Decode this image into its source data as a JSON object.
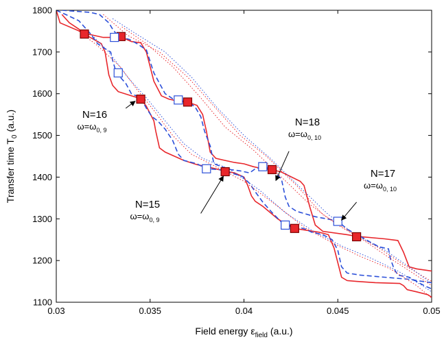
{
  "chart_data": {
    "type": "line",
    "xlabel": "Field energy ε",
    "xlabel_sub": "field",
    "xlabel_unit": "(a.u.)",
    "ylabel": "Transfer time T",
    "ylabel_sub": "0",
    "ylabel_unit": "(a.u.)",
    "xlim": [
      0.03,
      0.05
    ],
    "ylim": [
      1100,
      1800
    ],
    "x_ticks": [
      "0.03",
      "0.035",
      "0.04",
      "0.045",
      "0.05"
    ],
    "y_ticks": [
      "1100",
      "1200",
      "1300",
      "1400",
      "1500",
      "1600",
      "1700",
      "1800"
    ],
    "grid": false,
    "colors": {
      "red": "#e8262b",
      "blue": "#2b4fd9",
      "marker_edge_red": "#7a0000"
    },
    "series": [
      {
        "style": "red-solid",
        "points": [
          [
            0.03,
            1800
          ],
          [
            0.0302,
            1770
          ],
          [
            0.0315,
            1745
          ],
          [
            0.0325,
            1735
          ],
          [
            0.0335,
            1735
          ],
          [
            0.034,
            1725
          ],
          [
            0.0345,
            1722
          ],
          [
            0.0348,
            1700
          ],
          [
            0.0352,
            1630
          ],
          [
            0.0356,
            1595
          ],
          [
            0.036,
            1587
          ],
          [
            0.0365,
            1582
          ],
          [
            0.037,
            1580
          ],
          [
            0.0375,
            1572
          ],
          [
            0.0378,
            1550
          ],
          [
            0.038,
            1510
          ],
          [
            0.0382,
            1460
          ],
          [
            0.0385,
            1445
          ],
          [
            0.039,
            1440
          ],
          [
            0.0395,
            1435
          ],
          [
            0.04,
            1432
          ],
          [
            0.0405,
            1425
          ],
          [
            0.041,
            1420
          ],
          [
            0.0415,
            1418
          ],
          [
            0.042,
            1412
          ],
          [
            0.043,
            1390
          ],
          [
            0.0432,
            1380
          ],
          [
            0.0435,
            1330
          ],
          [
            0.0438,
            1285
          ],
          [
            0.0442,
            1270
          ],
          [
            0.0455,
            1262
          ],
          [
            0.046,
            1258
          ],
          [
            0.0475,
            1252
          ],
          [
            0.0482,
            1248
          ],
          [
            0.0485,
            1220
          ],
          [
            0.0488,
            1185
          ],
          [
            0.0492,
            1180
          ],
          [
            0.05,
            1175
          ]
        ]
      },
      {
        "style": "red-solid",
        "points": [
          [
            0.0303,
            1790
          ],
          [
            0.0307,
            1770
          ],
          [
            0.0312,
            1755
          ],
          [
            0.0315,
            1743
          ],
          [
            0.032,
            1730
          ],
          [
            0.0324,
            1720
          ],
          [
            0.0326,
            1700
          ],
          [
            0.0328,
            1645
          ],
          [
            0.033,
            1620
          ],
          [
            0.0333,
            1605
          ],
          [
            0.034,
            1595
          ],
          [
            0.0345,
            1588
          ],
          [
            0.0348,
            1570
          ],
          [
            0.035,
            1552
          ],
          [
            0.0352,
            1535
          ],
          [
            0.0353,
            1510
          ],
          [
            0.0355,
            1470
          ],
          [
            0.0358,
            1460
          ],
          [
            0.0363,
            1450
          ],
          [
            0.0368,
            1440
          ],
          [
            0.0375,
            1430
          ],
          [
            0.038,
            1425
          ],
          [
            0.0385,
            1420
          ],
          [
            0.039,
            1414
          ],
          [
            0.0395,
            1410
          ],
          [
            0.04,
            1400
          ],
          [
            0.0402,
            1380
          ],
          [
            0.0404,
            1355
          ],
          [
            0.0406,
            1342
          ],
          [
            0.041,
            1330
          ],
          [
            0.0418,
            1300
          ],
          [
            0.0423,
            1285
          ],
          [
            0.0427,
            1277
          ],
          [
            0.044,
            1268
          ],
          [
            0.0445,
            1262
          ],
          [
            0.0448,
            1230
          ],
          [
            0.0452,
            1160
          ],
          [
            0.0455,
            1152
          ],
          [
            0.046,
            1150
          ],
          [
            0.047,
            1147
          ],
          [
            0.0483,
            1145
          ],
          [
            0.0485,
            1140
          ],
          [
            0.0487,
            1130
          ],
          [
            0.0492,
            1125
          ],
          [
            0.0498,
            1118
          ],
          [
            0.05,
            1112
          ]
        ]
      },
      {
        "style": "blue-dash",
        "points": [
          [
            0.0303,
            1800
          ],
          [
            0.0318,
            1795
          ],
          [
            0.0323,
            1790
          ],
          [
            0.0328,
            1770
          ],
          [
            0.033,
            1755
          ],
          [
            0.0333,
            1737
          ],
          [
            0.0339,
            1730
          ],
          [
            0.0343,
            1720
          ],
          [
            0.0348,
            1705
          ],
          [
            0.0352,
            1650
          ],
          [
            0.0358,
            1600
          ],
          [
            0.0362,
            1588
          ],
          [
            0.0366,
            1584
          ],
          [
            0.037,
            1582
          ],
          [
            0.0374,
            1568
          ],
          [
            0.0377,
            1545
          ],
          [
            0.0379,
            1510
          ],
          [
            0.0382,
            1475
          ],
          [
            0.0384,
            1432
          ],
          [
            0.0388,
            1425
          ],
          [
            0.0393,
            1418
          ],
          [
            0.0398,
            1415
          ],
          [
            0.0403,
            1410
          ],
          [
            0.0406,
            1420
          ],
          [
            0.0411,
            1425
          ],
          [
            0.0416,
            1415
          ],
          [
            0.042,
            1395
          ],
          [
            0.0422,
            1352
          ],
          [
            0.0424,
            1330
          ],
          [
            0.0428,
            1318
          ],
          [
            0.0438,
            1305
          ],
          [
            0.045,
            1295
          ],
          [
            0.0455,
            1275
          ],
          [
            0.0462,
            1258
          ],
          [
            0.0467,
            1245
          ],
          [
            0.0472,
            1233
          ],
          [
            0.0477,
            1228
          ],
          [
            0.0478,
            1205
          ],
          [
            0.048,
            1180
          ],
          [
            0.0482,
            1165
          ],
          [
            0.0488,
            1160
          ],
          [
            0.0492,
            1150
          ],
          [
            0.0496,
            1140
          ],
          [
            0.05,
            1132
          ]
        ]
      },
      {
        "style": "blue-dash",
        "points": [
          [
            0.03,
            1800
          ],
          [
            0.0305,
            1790
          ],
          [
            0.0312,
            1775
          ],
          [
            0.0318,
            1745
          ],
          [
            0.0322,
            1720
          ],
          [
            0.0327,
            1705
          ],
          [
            0.0329,
            1700
          ],
          [
            0.033,
            1680
          ],
          [
            0.0332,
            1650
          ],
          [
            0.0337,
            1625
          ],
          [
            0.034,
            1600
          ],
          [
            0.0345,
            1590
          ],
          [
            0.0348,
            1565
          ],
          [
            0.0351,
            1545
          ],
          [
            0.0354,
            1535
          ],
          [
            0.0358,
            1515
          ],
          [
            0.0362,
            1488
          ],
          [
            0.0365,
            1455
          ],
          [
            0.0368,
            1440
          ],
          [
            0.0375,
            1432
          ],
          [
            0.038,
            1420
          ],
          [
            0.0387,
            1418
          ],
          [
            0.0393,
            1410
          ],
          [
            0.0399,
            1402
          ],
          [
            0.0403,
            1385
          ],
          [
            0.0406,
            1365
          ],
          [
            0.041,
            1340
          ],
          [
            0.0415,
            1315
          ],
          [
            0.042,
            1292
          ],
          [
            0.0424,
            1285
          ],
          [
            0.0429,
            1280
          ],
          [
            0.0433,
            1275
          ],
          [
            0.0436,
            1268
          ],
          [
            0.0442,
            1262
          ],
          [
            0.0447,
            1250
          ],
          [
            0.045,
            1225
          ],
          [
            0.0452,
            1185
          ],
          [
            0.0455,
            1170
          ],
          [
            0.0462,
            1165
          ],
          [
            0.047,
            1162
          ],
          [
            0.0475,
            1160
          ],
          [
            0.048,
            1158
          ],
          [
            0.0488,
            1155
          ],
          [
            0.0495,
            1150
          ],
          [
            0.05,
            1147
          ]
        ]
      },
      {
        "style": "red-dot",
        "points": [
          [
            0.0325,
            1790
          ],
          [
            0.0338,
            1740
          ],
          [
            0.0355,
            1700
          ],
          [
            0.037,
            1640
          ],
          [
            0.0385,
            1565
          ],
          [
            0.0398,
            1500
          ],
          [
            0.0412,
            1450
          ],
          [
            0.0428,
            1380
          ],
          [
            0.0442,
            1310
          ],
          [
            0.0458,
            1265
          ],
          [
            0.0472,
            1230
          ],
          [
            0.0485,
            1190
          ],
          [
            0.05,
            1150
          ]
        ]
      },
      {
        "style": "red-dot",
        "points": [
          [
            0.0335,
            1760
          ],
          [
            0.0348,
            1720
          ],
          [
            0.0362,
            1665
          ],
          [
            0.0377,
            1590
          ],
          [
            0.039,
            1520
          ],
          [
            0.0405,
            1465
          ],
          [
            0.042,
            1400
          ],
          [
            0.0435,
            1335
          ],
          [
            0.045,
            1285
          ],
          [
            0.0465,
            1245
          ],
          [
            0.0478,
            1205
          ],
          [
            0.049,
            1170
          ],
          [
            0.05,
            1140
          ]
        ]
      },
      {
        "style": "red-dot",
        "points": [
          [
            0.0312,
            1750
          ],
          [
            0.0322,
            1715
          ],
          [
            0.0334,
            1665
          ],
          [
            0.0343,
            1610
          ],
          [
            0.0352,
            1560
          ],
          [
            0.0362,
            1500
          ],
          [
            0.0372,
            1455
          ],
          [
            0.0385,
            1425
          ],
          [
            0.04,
            1390
          ],
          [
            0.0418,
            1330
          ],
          [
            0.0432,
            1280
          ],
          [
            0.0448,
            1240
          ],
          [
            0.0462,
            1210
          ],
          [
            0.0478,
            1180
          ],
          [
            0.0492,
            1140
          ],
          [
            0.05,
            1110
          ]
        ]
      },
      {
        "style": "blue-dot",
        "points": [
          [
            0.033,
            1780
          ],
          [
            0.0342,
            1745
          ],
          [
            0.0358,
            1700
          ],
          [
            0.0372,
            1640
          ],
          [
            0.0386,
            1565
          ],
          [
            0.04,
            1500
          ],
          [
            0.0414,
            1445
          ],
          [
            0.043,
            1375
          ],
          [
            0.0445,
            1310
          ],
          [
            0.046,
            1260
          ],
          [
            0.0475,
            1225
          ],
          [
            0.0488,
            1185
          ],
          [
            0.05,
            1145
          ]
        ]
      },
      {
        "style": "blue-dot",
        "points": [
          [
            0.0318,
            1745
          ],
          [
            0.0328,
            1700
          ],
          [
            0.0338,
            1640
          ],
          [
            0.0348,
            1590
          ],
          [
            0.0358,
            1535
          ],
          [
            0.0368,
            1480
          ],
          [
            0.0378,
            1445
          ],
          [
            0.0392,
            1420
          ],
          [
            0.0408,
            1370
          ],
          [
            0.0422,
            1315
          ],
          [
            0.0437,
            1270
          ],
          [
            0.0452,
            1235
          ],
          [
            0.0468,
            1205
          ],
          [
            0.0482,
            1175
          ],
          [
            0.0495,
            1140
          ],
          [
            0.05,
            1125
          ]
        ]
      }
    ],
    "markers_red_filled": [
      [
        0.0315,
        1743
      ],
      [
        0.03345,
        1737
      ],
      [
        0.0345,
        1587
      ],
      [
        0.037,
        1580
      ],
      [
        0.039,
        1413
      ],
      [
        0.0415,
        1418
      ],
      [
        0.0427,
        1277
      ],
      [
        0.046,
        1257
      ]
    ],
    "markers_blue_open": [
      [
        0.0331,
        1735
      ],
      [
        0.0333,
        1650
      ],
      [
        0.0365,
        1585
      ],
      [
        0.038,
        1420
      ],
      [
        0.041,
        1425
      ],
      [
        0.0422,
        1285
      ],
      [
        0.045,
        1294
      ]
    ],
    "annotations": [
      {
        "main": "N=16",
        "sub": "ω=ω",
        "subsub": "0, 9",
        "arrow_from": [
          0.0337,
          1565
        ],
        "arrow_to": [
          0.0342,
          1582
        ]
      },
      {
        "main": "N=15",
        "sub": "ω=ω",
        "subsub": "0, 9",
        "arrow_from": [
          0.0377,
          1313
        ],
        "arrow_to": [
          0.0389,
          1402
        ]
      },
      {
        "main": "N=18",
        "sub": "ω=ω",
        "subsub": "0, 10",
        "arrow_from": [
          0.0424,
          1462
        ],
        "arrow_to": [
          0.0417,
          1392
        ]
      },
      {
        "main": "N=17",
        "sub": "ω=ω",
        "subsub": "0, 10",
        "arrow_from": [
          0.046,
          1340
        ],
        "arrow_to": [
          0.0452,
          1297
        ]
      }
    ]
  }
}
